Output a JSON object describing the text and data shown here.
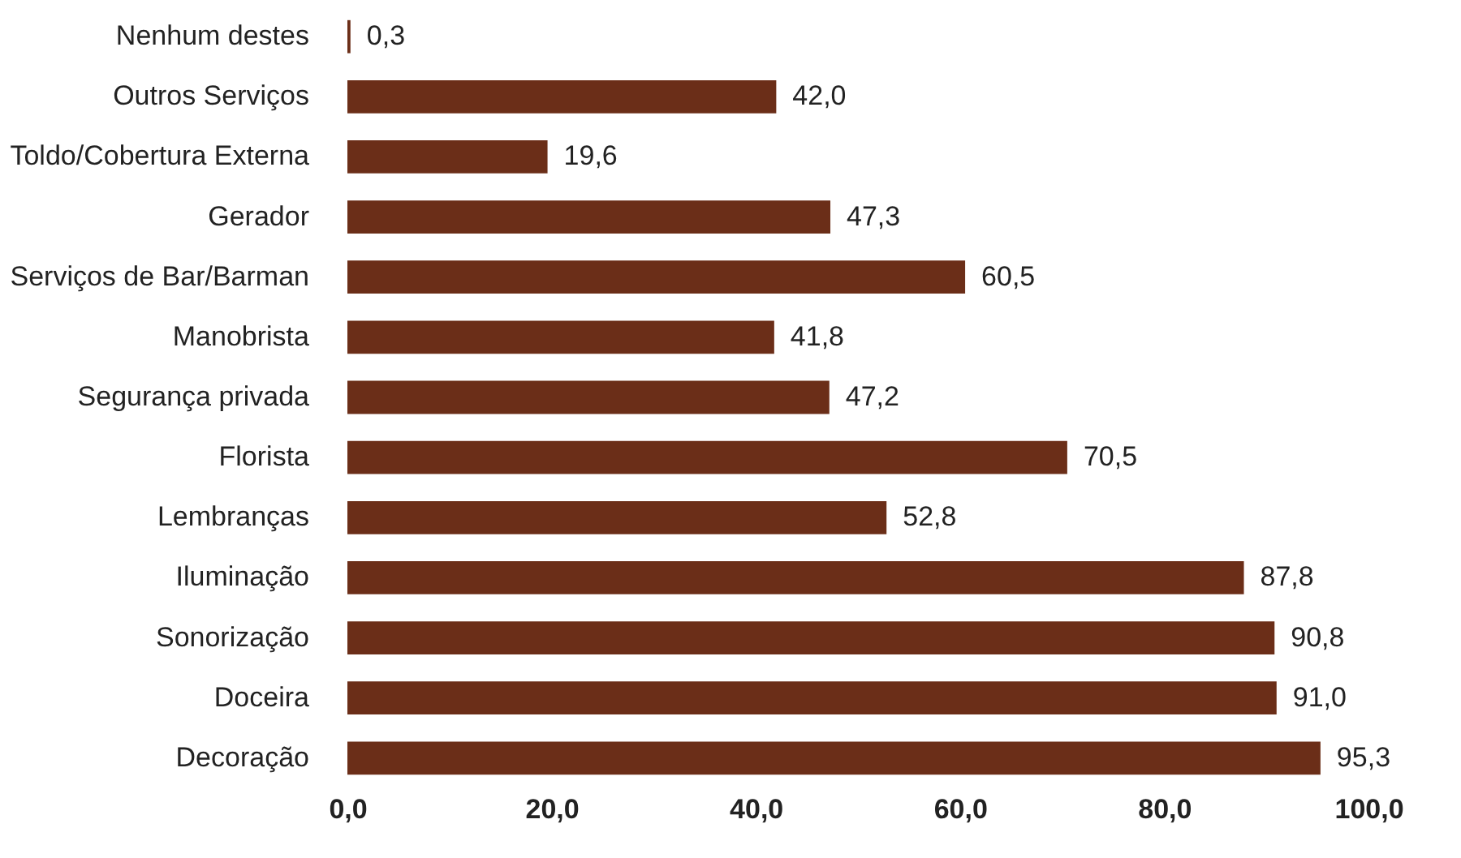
{
  "chart_data": {
    "type": "bar",
    "orientation": "horizontal",
    "categories": [
      "Nenhum destes",
      "Outros Serviços",
      "Toldo/Cobertura Externa",
      "Gerador",
      "Serviços de Bar/Barman",
      "Manobrista",
      "Segurança privada",
      "Florista",
      "Lembranças",
      "Iluminação",
      "Sonorização",
      "Doceira",
      "Decoração"
    ],
    "values": [
      0.3,
      42.0,
      19.6,
      47.3,
      60.5,
      41.8,
      47.2,
      70.5,
      52.8,
      87.8,
      90.8,
      91.0,
      95.3
    ],
    "value_labels": [
      "0,3",
      "42,0",
      "19,6",
      "47,3",
      "60,5",
      "41,8",
      "47,2",
      "70,5",
      "52,8",
      "87,8",
      "90,8",
      "91,0",
      "95,3"
    ],
    "color": "#6b2e18",
    "xlim": [
      0,
      100
    ],
    "xticks": [
      {
        "value": 0,
        "label": "0,0"
      },
      {
        "value": 20,
        "label": "20,0"
      },
      {
        "value": 40,
        "label": "40,0"
      },
      {
        "value": 60,
        "label": "60,0"
      },
      {
        "value": 80,
        "label": "80,0"
      },
      {
        "value": 100,
        "label": "100,0"
      }
    ],
    "grid": false
  }
}
